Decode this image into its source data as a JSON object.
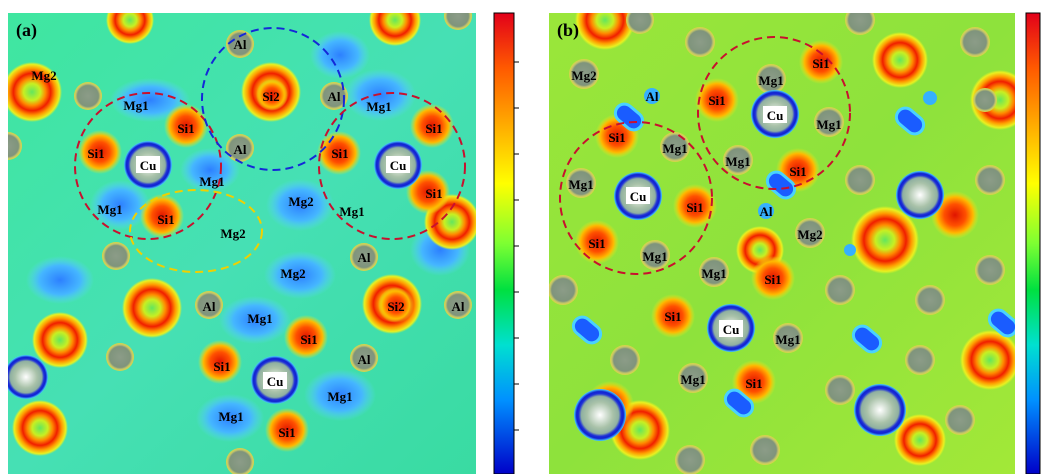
{
  "panels": [
    {
      "letter": "(a)",
      "labels": [
        [
          "Al",
          240,
          44
        ],
        [
          "Si2",
          271,
          96
        ],
        [
          "Al",
          334,
          96
        ],
        [
          "Mg1",
          379,
          106
        ],
        [
          "Mg2",
          44,
          75
        ],
        [
          "Mg1",
          136,
          105
        ],
        [
          "Si1",
          186,
          128
        ],
        [
          "Al",
          240,
          149
        ],
        [
          "Si1",
          96,
          153
        ],
        [
          "Si1",
          340,
          153
        ],
        [
          "Si1",
          434,
          128
        ],
        [
          "Si1",
          434,
          193
        ],
        [
          "Mg1",
          212,
          181
        ],
        [
          "Mg2",
          301,
          201
        ],
        [
          "Mg1",
          352,
          211
        ],
        [
          "Mg1",
          110,
          209
        ],
        [
          "Si1",
          166,
          219
        ],
        [
          "Mg2",
          233,
          233
        ],
        [
          "Mg2",
          293,
          273
        ],
        [
          "Al",
          364,
          257
        ],
        [
          "Al",
          209,
          306
        ],
        [
          "Mg1",
          260,
          318
        ],
        [
          "Si2",
          396,
          306
        ],
        [
          "Al",
          458,
          306
        ],
        [
          "Si1",
          309,
          339
        ],
        [
          "Si1",
          222,
          366
        ],
        [
          "Al",
          364,
          359
        ],
        [
          "Mg1",
          231,
          416
        ],
        [
          "Mg1",
          340,
          396
        ],
        [
          "Si1",
          287,
          432
        ]
      ],
      "cu": [
        [
          "Cu",
          148,
          165
        ],
        [
          "Cu",
          398,
          165
        ],
        [
          "Cu",
          275,
          381
        ]
      ]
    },
    {
      "letter": "(b)",
      "labels": [
        [
          "Mg2",
          584,
          75
        ],
        [
          "Al",
          652,
          96
        ],
        [
          "Mg1",
          771,
          80
        ],
        [
          "Si1",
          821,
          63
        ],
        [
          "Si1",
          717,
          100
        ],
        [
          "Mg1",
          829,
          124
        ],
        [
          "Si1",
          617,
          137
        ],
        [
          "Mg1",
          675,
          148
        ],
        [
          "Mg1",
          738,
          161
        ],
        [
          "Si1",
          798,
          171
        ],
        [
          "Mg1",
          581,
          184
        ],
        [
          "Si1",
          695,
          207
        ],
        [
          "Al",
          766,
          211
        ],
        [
          "Mg2",
          810,
          234
        ],
        [
          "Si1",
          597,
          243
        ],
        [
          "Mg1",
          655,
          256
        ],
        [
          "Mg1",
          714,
          273
        ],
        [
          "Si1",
          773,
          279
        ],
        [
          "Si1",
          673,
          316
        ],
        [
          "Mg1",
          788,
          339
        ],
        [
          "Mg1",
          693,
          379
        ],
        [
          "Si1",
          754,
          383
        ]
      ],
      "cu": [
        [
          "Cu",
          775,
          115
        ],
        [
          "Cu",
          638,
          196
        ],
        [
          "Cu",
          731,
          329
        ]
      ]
    }
  ]
}
